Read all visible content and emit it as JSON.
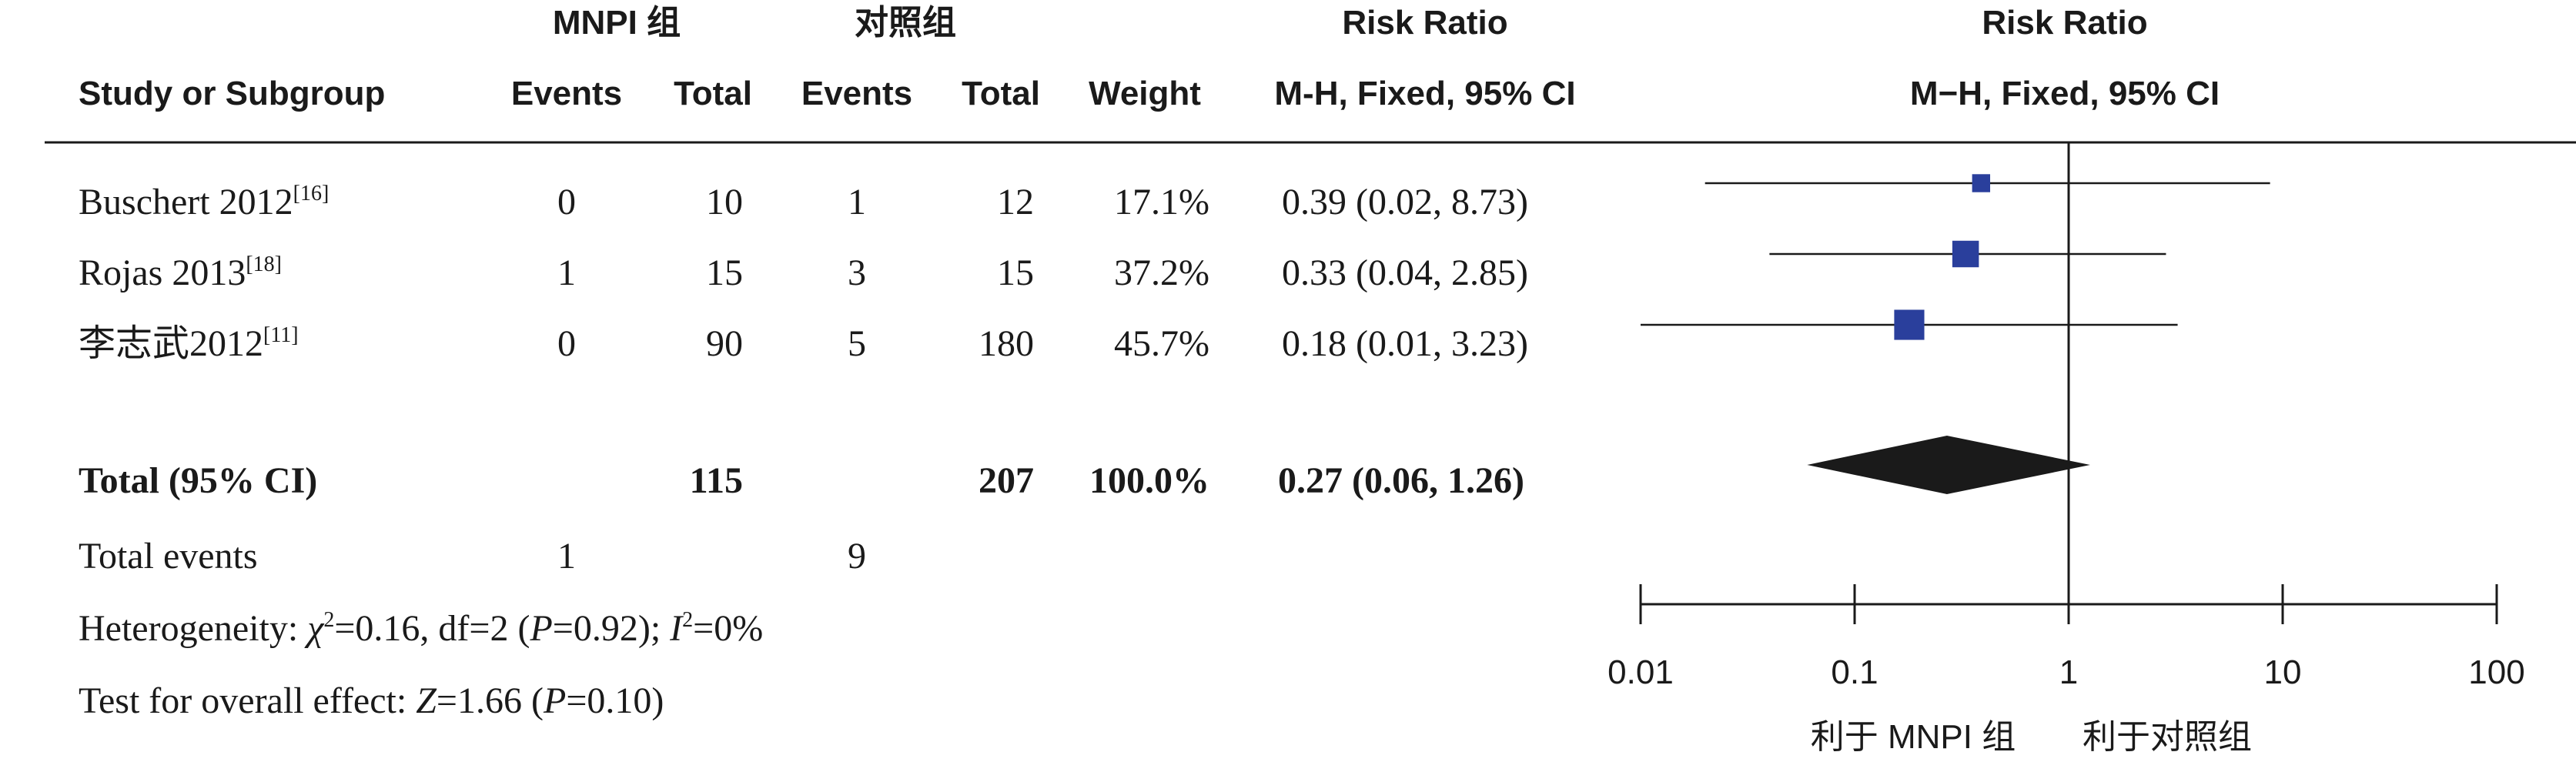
{
  "header": {
    "group1": "MNPI 组",
    "group2": "对照组",
    "risk_ratio_left": "Risk Ratio",
    "risk_ratio_right": "Risk Ratio",
    "study_col": "Study or Subgroup",
    "events1": "Events",
    "total1": "Total",
    "events2": "Events",
    "total2": "Total",
    "weight": "Weight",
    "method_left": "M-H, Fixed, 95% CI",
    "method_right": "M−H, Fixed, 95% CI"
  },
  "studies": [
    {
      "name": "Buschert 2012",
      "ref": "[16]",
      "e1": "0",
      "n1": "10",
      "e2": "1",
      "n2": "12",
      "weight": "17.1%",
      "ci_text": "0.39 (0.02, 8.73)"
    },
    {
      "name": "Rojas 2013",
      "ref": "[18]",
      "e1": "1",
      "n1": "15",
      "e2": "3",
      "n2": "15",
      "weight": "37.2%",
      "ci_text": "0.33 (0.04, 2.85)"
    },
    {
      "name": "李志武2012",
      "ref": "[11]",
      "e1": "0",
      "n1": "90",
      "e2": "5",
      "n2": "180",
      "weight": "45.7%",
      "ci_text": "0.18 (0.01, 3.23)"
    }
  ],
  "total": {
    "label": "Total (95% CI)",
    "n1": "115",
    "n2": "207",
    "weight": "100.0%",
    "ci_text": "0.27 (0.06, 1.26)"
  },
  "total_events": {
    "label": "Total events",
    "e1": "1",
    "e2": "9"
  },
  "heterogeneity": {
    "prefix": "Heterogeneity: ",
    "chi_sym": "χ",
    "chi_sup": "2",
    "chi_val": "=0.16, df=2 (",
    "p_sym": "P",
    "p_val": "=0.92); ",
    "i_sym": "I",
    "i_sup": "2",
    "i_val": "=0%"
  },
  "overall": {
    "prefix": "Test for overall effect: ",
    "z_sym": "Z",
    "z_val": "=1.66 (",
    "p_sym": "P",
    "p_val": "=0.10)"
  },
  "axis": {
    "ticks": [
      "0.01",
      "0.1",
      "1",
      "10",
      "100"
    ],
    "favours_left": "利于 MNPI 组",
    "favours_right": "利于对照组"
  },
  "colors": {
    "marker": "#2a3f9c",
    "diamond": "#1a1a1a",
    "line": "#1a1a1a"
  },
  "chart_data": {
    "type": "forest",
    "scale": "log",
    "xlim": [
      0.01,
      100
    ],
    "null_value": 1,
    "studies": [
      {
        "name": "Buschert 2012",
        "rr": 0.39,
        "lo": 0.02,
        "hi": 8.73,
        "weight": 17.1
      },
      {
        "name": "Rojas 2013",
        "rr": 0.33,
        "lo": 0.04,
        "hi": 2.85,
        "weight": 37.2
      },
      {
        "name": "李志武2012",
        "rr": 0.18,
        "lo": 0.01,
        "hi": 3.23,
        "weight": 45.7
      }
    ],
    "pooled": {
      "rr": 0.27,
      "lo": 0.06,
      "hi": 1.26
    }
  }
}
